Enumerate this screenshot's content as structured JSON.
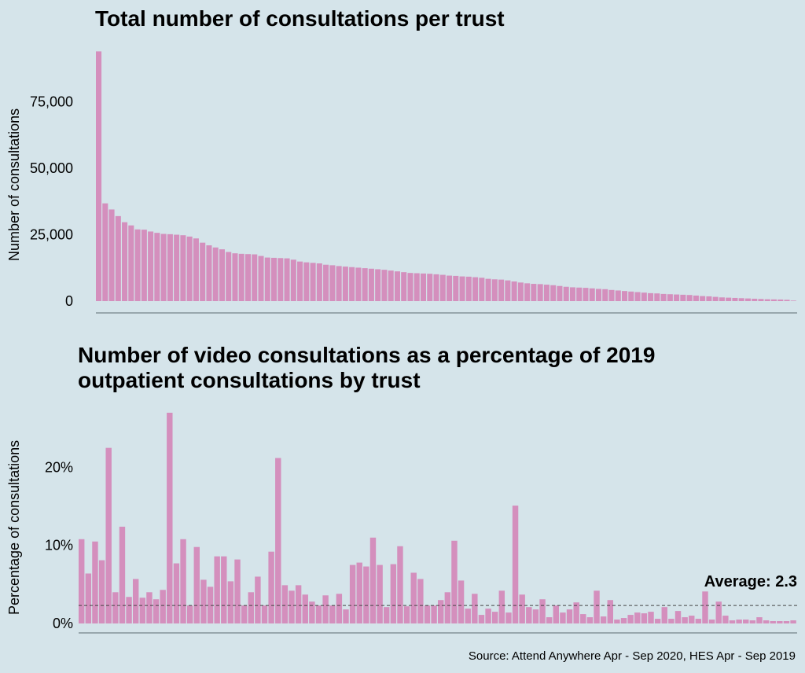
{
  "colors": {
    "background": "#d5e4ea",
    "bar": "#d48fbd",
    "axis": "#5a6a70"
  },
  "source": "Source: Attend Anywhere Apr - Sep 2020, HES Apr - Sep 2019",
  "chart_data": [
    {
      "type": "bar",
      "title": "Total number of consultations per trust",
      "ylabel": "Number of consultations",
      "xlabel": "",
      "ylim": [
        0,
        95000
      ],
      "yticks": [
        0,
        25000,
        50000,
        75000
      ],
      "ytick_labels": [
        "0",
        "25,000",
        "50,000",
        "75,000"
      ],
      "grid": false,
      "values": [
        94000,
        36800,
        34500,
        32000,
        29700,
        28500,
        27000,
        26900,
        26200,
        25700,
        25300,
        25200,
        25000,
        24800,
        24300,
        23600,
        22000,
        21000,
        20200,
        19500,
        18500,
        18000,
        17800,
        17700,
        17600,
        17000,
        16400,
        16300,
        16200,
        16100,
        15600,
        14900,
        14600,
        14400,
        14200,
        13700,
        13500,
        13200,
        13000,
        12800,
        12600,
        12400,
        12200,
        12000,
        11800,
        11500,
        11200,
        10900,
        10600,
        10500,
        10400,
        10300,
        10100,
        9900,
        9600,
        9500,
        9300,
        9200,
        9000,
        8800,
        8400,
        8200,
        8100,
        7800,
        7400,
        7000,
        6700,
        6500,
        6400,
        6200,
        6000,
        5700,
        5400,
        5200,
        5100,
        5000,
        4800,
        4600,
        4500,
        4200,
        4000,
        3800,
        3600,
        3400,
        3200,
        3000,
        2900,
        2700,
        2600,
        2500,
        2400,
        2300,
        2100,
        1900,
        1800,
        1600,
        1400,
        1300,
        1200,
        1100,
        1000,
        900,
        800,
        700,
        650,
        600,
        500,
        200
      ]
    },
    {
      "type": "bar",
      "title": "Number of video consultations as a percentage of 2019 outpatient consultations by trust",
      "ylabel": "Percentage of consultations",
      "xlabel": "",
      "ylim": [
        0,
        27.5
      ],
      "yticks": [
        0,
        10,
        20
      ],
      "ytick_labels": [
        "0%",
        "10%",
        "20%"
      ],
      "grid": false,
      "average": 2.3,
      "average_label": "Average: 2.3",
      "values": [
        10.8,
        6.4,
        10.5,
        8.1,
        22.5,
        4.0,
        12.4,
        3.4,
        5.7,
        3.3,
        4.0,
        3.1,
        4.3,
        27.0,
        7.7,
        10.8,
        2.3,
        9.8,
        5.6,
        4.7,
        8.6,
        8.6,
        5.4,
        8.2,
        2.3,
        4.0,
        6.0,
        2.3,
        9.2,
        21.2,
        4.9,
        4.2,
        4.9,
        3.7,
        2.8,
        2.3,
        3.6,
        2.3,
        3.8,
        1.8,
        7.5,
        7.8,
        7.3,
        11.0,
        7.5,
        2.1,
        7.6,
        9.9,
        2.2,
        6.5,
        5.7,
        2.3,
        2.3,
        3.0,
        4.0,
        10.6,
        5.5,
        1.9,
        3.8,
        1.1,
        1.9,
        1.5,
        4.2,
        1.4,
        15.1,
        3.7,
        2.1,
        1.8,
        3.1,
        0.8,
        2.3,
        1.4,
        1.8,
        2.7,
        1.2,
        0.8,
        4.2,
        0.9,
        3.0,
        0.5,
        0.7,
        1.1,
        1.4,
        1.3,
        1.5,
        0.6,
        2.1,
        0.6,
        1.6,
        0.8,
        1.0,
        0.6,
        4.1,
        0.5,
        2.8,
        1.0,
        0.4,
        0.5,
        0.5,
        0.4,
        0.8,
        0.4,
        0.3,
        0.3,
        0.3,
        0.4
      ]
    }
  ]
}
